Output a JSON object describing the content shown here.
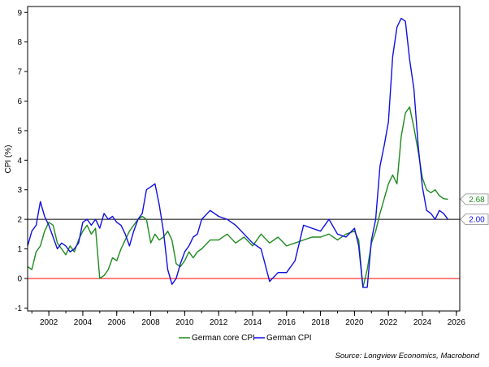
{
  "chart_data": {
    "type": "line",
    "title": "",
    "xlabel": "",
    "ylabel": "CPI (%)",
    "xlim": [
      2000.75,
      2026.2
    ],
    "ylim": [
      -1.1,
      9.2
    ],
    "y_ticks": [
      -1,
      0,
      1,
      2,
      3,
      4,
      5,
      6,
      7,
      8,
      9
    ],
    "x_ticks": [
      2002,
      2004,
      2006,
      2008,
      2010,
      2012,
      2014,
      2016,
      2018,
      2020,
      2022,
      2024,
      2026
    ],
    "reference_lines": [
      {
        "name": "two-percent-line",
        "y": 2,
        "color": "#000000"
      },
      {
        "name": "zero-line",
        "y": 0,
        "color": "#ff0000"
      }
    ],
    "series": [
      {
        "name": "German core CPI",
        "color": "#1f8a1f",
        "x": [
          2000.75,
          2001.0,
          2001.25,
          2001.5,
          2001.75,
          2002.0,
          2002.25,
          2002.5,
          2002.75,
          2003.0,
          2003.25,
          2003.5,
          2003.75,
          2004.0,
          2004.25,
          2004.5,
          2004.75,
          2005.0,
          2005.25,
          2005.5,
          2005.75,
          2006.0,
          2006.25,
          2006.5,
          2006.75,
          2007.0,
          2007.25,
          2007.5,
          2007.75,
          2008.0,
          2008.25,
          2008.5,
          2008.75,
          2009.0,
          2009.25,
          2009.5,
          2009.75,
          2010.0,
          2010.25,
          2010.5,
          2010.75,
          2011.0,
          2011.5,
          2012.0,
          2012.5,
          2013.0,
          2013.5,
          2014.0,
          2014.5,
          2015.0,
          2015.5,
          2016.0,
          2016.5,
          2017.0,
          2017.5,
          2018.0,
          2018.5,
          2019.0,
          2019.5,
          2020.0,
          2020.25,
          2020.5,
          2020.75,
          2021.0,
          2021.25,
          2021.5,
          2021.75,
          2022.0,
          2022.25,
          2022.5,
          2022.75,
          2023.0,
          2023.25,
          2023.5,
          2023.75,
          2024.0,
          2024.25,
          2024.5,
          2024.75,
          2025.0,
          2025.25,
          2025.5
        ],
        "values": [
          0.4,
          0.3,
          0.9,
          1.1,
          1.6,
          1.9,
          1.8,
          1.2,
          1.0,
          0.8,
          1.1,
          0.9,
          1.3,
          1.6,
          1.8,
          1.5,
          1.7,
          0.0,
          0.1,
          0.3,
          0.7,
          0.6,
          1.0,
          1.3,
          1.6,
          1.8,
          2.0,
          2.1,
          2.0,
          1.2,
          1.5,
          1.3,
          1.4,
          1.6,
          1.3,
          0.5,
          0.4,
          0.6,
          0.9,
          0.7,
          0.9,
          1.0,
          1.3,
          1.3,
          1.5,
          1.2,
          1.4,
          1.1,
          1.5,
          1.2,
          1.4,
          1.1,
          1.2,
          1.3,
          1.4,
          1.4,
          1.5,
          1.3,
          1.5,
          1.6,
          1.3,
          -0.3,
          0.3,
          1.2,
          1.6,
          2.2,
          2.7,
          3.2,
          3.5,
          3.2,
          4.8,
          5.6,
          5.8,
          5.1,
          4.3,
          3.4,
          3.0,
          2.9,
          3.0,
          2.8,
          2.7,
          2.68
        ]
      },
      {
        "name": "German CPI",
        "color": "#1010e0",
        "x": [
          2000.75,
          2001.0,
          2001.25,
          2001.5,
          2001.75,
          2002.0,
          2002.25,
          2002.5,
          2002.75,
          2003.0,
          2003.25,
          2003.5,
          2003.75,
          2004.0,
          2004.25,
          2004.5,
          2004.75,
          2005.0,
          2005.25,
          2005.5,
          2005.75,
          2006.0,
          2006.25,
          2006.5,
          2006.75,
          2007.0,
          2007.25,
          2007.5,
          2007.75,
          2008.0,
          2008.25,
          2008.5,
          2008.75,
          2009.0,
          2009.25,
          2009.5,
          2009.75,
          2010.0,
          2010.25,
          2010.5,
          2010.75,
          2011.0,
          2011.5,
          2012.0,
          2012.5,
          2013.0,
          2013.5,
          2014.0,
          2014.5,
          2015.0,
          2015.5,
          2016.0,
          2016.5,
          2017.0,
          2017.5,
          2018.0,
          2018.5,
          2019.0,
          2019.5,
          2020.0,
          2020.25,
          2020.5,
          2020.75,
          2021.0,
          2021.25,
          2021.5,
          2021.75,
          2022.0,
          2022.25,
          2022.5,
          2022.75,
          2023.0,
          2023.25,
          2023.5,
          2023.75,
          2024.0,
          2024.25,
          2024.5,
          2024.75,
          2025.0,
          2025.25,
          2025.5
        ],
        "values": [
          1.1,
          1.6,
          1.8,
          2.6,
          2.1,
          1.8,
          1.4,
          1.0,
          1.2,
          1.1,
          0.9,
          1.0,
          1.2,
          1.9,
          2.0,
          1.8,
          2.0,
          1.7,
          2.2,
          2.0,
          2.1,
          1.9,
          1.8,
          1.5,
          1.1,
          1.6,
          2.0,
          2.2,
          3.0,
          3.1,
          3.2,
          2.5,
          1.6,
          0.3,
          -0.2,
          0.0,
          0.5,
          0.9,
          1.1,
          1.4,
          1.5,
          2.0,
          2.3,
          2.1,
          2.0,
          1.8,
          1.5,
          1.2,
          1.0,
          -0.1,
          0.2,
          0.2,
          0.6,
          1.8,
          1.7,
          1.6,
          2.0,
          1.5,
          1.4,
          1.7,
          1.1,
          -0.3,
          -0.3,
          1.3,
          2.0,
          3.8,
          4.5,
          5.3,
          7.5,
          8.5,
          8.8,
          8.7,
          7.4,
          6.4,
          4.5,
          3.1,
          2.3,
          2.2,
          2.0,
          2.3,
          2.2,
          2.0
        ]
      }
    ],
    "end_labels": [
      {
        "series": "German core CPI",
        "text": "2.68",
        "value": 2.68,
        "color": "#1f8a1f"
      },
      {
        "series": "German CPI",
        "text": "2.00",
        "value": 2.0,
        "color": "#1010e0"
      }
    ],
    "legend_position": "bottom-center"
  },
  "source": "Source: Longview Economics, Macrobond"
}
